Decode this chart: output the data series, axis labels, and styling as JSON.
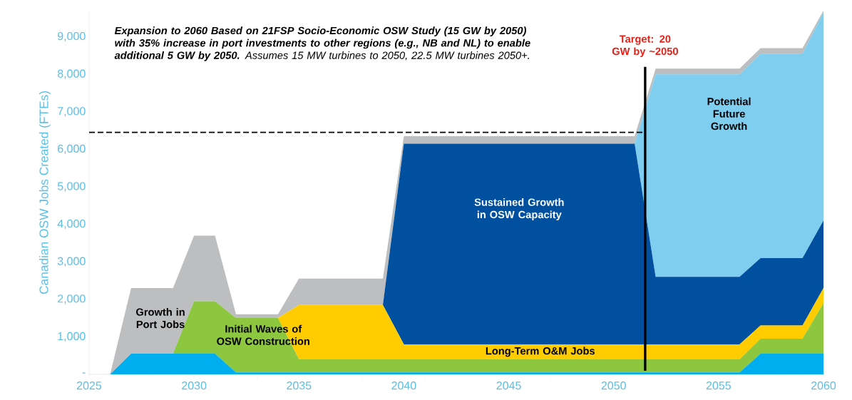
{
  "chart_data": {
    "type": "area",
    "stacked": true,
    "title": "**Expansion to 2060 Based on 21FSP Socio-Economic OSW Study (15 GW by 2050) with 35% increase in port investments to other regions (e.g., NB and NL) to enable additional 5 GW by 2050.** Assumes 15 MW turbines to 2050, 22.5 MW turbines 2050+.",
    "ylabel": "Canadian OSW Jobs Created (FTEs)",
    "x": [
      2025,
      2026,
      2027,
      2028,
      2029,
      2030,
      2031,
      2032,
      2033,
      2034,
      2035,
      2036,
      2037,
      2038,
      2039,
      2040,
      2041,
      2042,
      2043,
      2044,
      2045,
      2046,
      2047,
      2048,
      2049,
      2050,
      2051,
      2052,
      2053,
      2054,
      2055,
      2056,
      2057,
      2058,
      2059,
      2060
    ],
    "series": [
      {
        "color": "#00aeef",
        "values": [
          0,
          0,
          550,
          550,
          550,
          550,
          550,
          50,
          50,
          50,
          50,
          50,
          50,
          50,
          50,
          50,
          50,
          50,
          50,
          50,
          50,
          50,
          50,
          50,
          50,
          50,
          50,
          50,
          50,
          50,
          50,
          50,
          550,
          550,
          550,
          550
        ]
      },
      {
        "color": "#8dc63f",
        "values": [
          0,
          0,
          0,
          0,
          0,
          1400,
          1400,
          1450,
          1450,
          1450,
          350,
          350,
          350,
          350,
          350,
          350,
          350,
          350,
          350,
          350,
          350,
          350,
          350,
          350,
          350,
          350,
          350,
          350,
          350,
          350,
          350,
          350,
          400,
          400,
          400,
          1350
        ]
      },
      {
        "color": "#ffcc00",
        "values": [
          0,
          0,
          0,
          0,
          0,
          0,
          0,
          0,
          0,
          0,
          1450,
          1450,
          1450,
          1450,
          1450,
          400,
          400,
          400,
          400,
          400,
          400,
          400,
          400,
          400,
          400,
          400,
          400,
          400,
          400,
          400,
          400,
          400,
          350,
          350,
          350,
          400
        ]
      },
      {
        "color": "#0050a0",
        "values": [
          0,
          0,
          0,
          0,
          0,
          0,
          0,
          0,
          0,
          0,
          0,
          0,
          0,
          0,
          0,
          5350,
          5350,
          5350,
          5350,
          5350,
          5350,
          5350,
          5350,
          5350,
          5350,
          5350,
          5350,
          1800,
          1800,
          1800,
          1800,
          1800,
          1800,
          1800,
          1800,
          1800
        ]
      },
      {
        "color": "#7fcdef",
        "values": [
          0,
          0,
          0,
          0,
          0,
          0,
          0,
          0,
          0,
          0,
          0,
          0,
          0,
          0,
          0,
          0,
          0,
          0,
          0,
          0,
          0,
          0,
          0,
          0,
          0,
          0,
          0,
          5400,
          5400,
          5400,
          5400,
          5400,
          5450,
          5450,
          5450,
          5550
        ]
      },
      {
        "color": "#bcbec0",
        "values": [
          0,
          0,
          1750,
          1750,
          1750,
          1750,
          1750,
          100,
          100,
          100,
          700,
          700,
          700,
          700,
          700,
          200,
          200,
          200,
          200,
          200,
          200,
          200,
          200,
          200,
          200,
          200,
          200,
          150,
          150,
          150,
          150,
          150,
          150,
          150,
          150,
          50
        ]
      }
    ],
    "xlim": [
      2025,
      2060
    ],
    "xticks": [
      2025,
      {
        "value": 2026,
        "label": null
      },
      {
        "value": 2027,
        "label": null
      },
      {
        "value": 2028,
        "label": null
      },
      {
        "value": 2029,
        "label": null
      },
      2030,
      {
        "value": 2031,
        "label": null
      },
      {
        "value": 2032,
        "label": null
      },
      {
        "value": 2033,
        "label": null
      },
      {
        "value": 2034,
        "label": null
      },
      2035,
      {
        "value": 2036,
        "label": null
      },
      {
        "value": 2037,
        "label": null
      },
      {
        "value": 2038,
        "label": null
      },
      {
        "value": 2039,
        "label": null
      },
      2040,
      {
        "value": 2041,
        "label": null
      },
      {
        "value": 2042,
        "label": null
      },
      {
        "value": 2043,
        "label": null
      },
      {
        "value": 2044,
        "label": null
      },
      2045,
      {
        "value": 2046,
        "label": null
      },
      {
        "value": 2047,
        "label": null
      },
      {
        "value": 2048,
        "label": null
      },
      {
        "value": 2049,
        "label": null
      },
      2050,
      {
        "value": 2051,
        "label": null
      },
      {
        "value": 2052,
        "label": null
      },
      {
        "value": 2053,
        "label": null
      },
      {
        "value": 2054,
        "label": null
      },
      2055,
      {
        "value": 2056,
        "label": null
      },
      {
        "value": 2057,
        "label": null
      },
      {
        "value": 2058,
        "label": null
      },
      {
        "value": 2059,
        "label": null
      },
      2060
    ],
    "ylim": [
      0,
      9700
    ],
    "yticks": [
      {
        "value": 0,
        "label": "-"
      },
      {
        "value": 1000,
        "label": "1,000"
      },
      {
        "value": 2000,
        "label": "2,000"
      },
      {
        "value": 3000,
        "label": "3,000"
      },
      {
        "value": 4000,
        "label": "4,000"
      },
      {
        "value": 5000,
        "label": "5,000"
      },
      {
        "value": 6000,
        "label": "6,000"
      },
      {
        "value": 7000,
        "label": "7,000"
      },
      {
        "value": 8000,
        "label": "8,000"
      },
      {
        "value": 9000,
        "label": "9,000"
      }
    ],
    "ref_lines": [
      {
        "axis": "y",
        "value": 6450,
        "color": "#000000",
        "line_style": "dashed"
      },
      {
        "axis": "x",
        "value": 2051.5,
        "color": "#000000"
      }
    ],
    "annotations": [
      "Growth in Port Jobs",
      "Initial Waves of OSW Construction",
      "Long-Term O&M Jobs",
      "Sustained Growth in OSW Capacity",
      "Potential Future Growth",
      "Target: 20 GW by ~2050"
    ]
  }
}
